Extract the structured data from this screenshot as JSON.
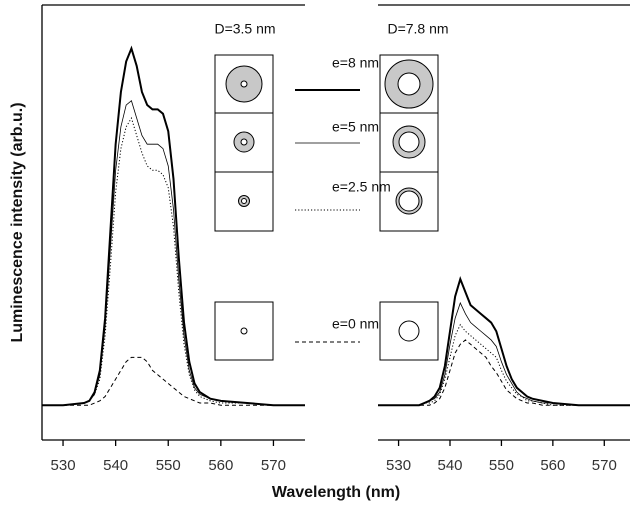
{
  "chart_data": [
    {
      "type": "line",
      "title": "D=3.5 nm",
      "ylabel": "Luminescence intensity (arb.u.)",
      "xlabel": "Wavelength (nm)",
      "x": [
        526,
        530,
        534,
        535,
        536,
        537,
        538,
        539,
        540,
        541,
        542,
        543,
        544,
        545,
        546,
        547,
        548,
        549,
        550,
        551,
        552,
        553,
        554,
        555,
        556,
        558,
        560,
        565,
        570,
        576
      ],
      "xlim": [
        526,
        576
      ],
      "xticks": [
        530,
        540,
        550,
        560,
        570
      ],
      "ylim": [
        0,
        100
      ],
      "series": [
        {
          "name": "e=8 nm",
          "color": "#000000",
          "line_style": "solid",
          "line_width": 2,
          "values": [
            8,
            8,
            8.5,
            9,
            11,
            16,
            28,
            48,
            68,
            80,
            87,
            90,
            86,
            80,
            77,
            76,
            76,
            75,
            71,
            60,
            42,
            27,
            18,
            13,
            11,
            9.5,
            9,
            8.5,
            8,
            8
          ]
        },
        {
          "name": "e=5 nm",
          "color": "#000000",
          "line_style": "solid",
          "line_width": 0.8,
          "values": [
            8,
            8,
            8.5,
            9,
            10.5,
            15,
            26,
            44,
            62,
            72,
            77,
            78,
            74,
            70,
            68,
            68,
            68,
            67,
            63,
            53,
            37,
            24,
            16,
            12,
            10.5,
            9.5,
            9,
            8.5,
            8,
            8
          ]
        },
        {
          "name": "e=2.5 nm",
          "color": "#000000",
          "line_style": "dotted",
          "line_width": 1,
          "values": [
            8,
            8,
            8.5,
            9,
            10.5,
            14,
            24,
            40,
            57,
            67,
            72,
            74,
            70,
            66,
            63,
            62,
            62,
            61,
            58,
            49,
            34,
            22,
            15,
            11.5,
            10,
            9,
            8.5,
            8.5,
            8,
            8
          ]
        },
        {
          "name": "e=0 nm",
          "color": "#000000",
          "line_style": "dashed",
          "line_width": 1,
          "values": [
            8,
            8,
            8,
            8,
            8.5,
            9,
            10,
            12,
            14,
            16,
            18,
            19,
            19,
            19,
            18,
            16,
            15,
            14,
            13,
            12,
            11,
            10,
            9.5,
            9,
            8.5,
            8.5,
            8,
            8,
            8,
            8
          ]
        }
      ]
    },
    {
      "type": "line",
      "title": "D=7.8 nm",
      "x": [
        526,
        530,
        534,
        535,
        536,
        537,
        538,
        539,
        540,
        541,
        542,
        543,
        544,
        545,
        546,
        547,
        548,
        549,
        550,
        551,
        552,
        553,
        554,
        555,
        556,
        558,
        560,
        565,
        570,
        575
      ],
      "xlim": [
        526,
        575
      ],
      "xticks": [
        530,
        540,
        550,
        560,
        570
      ],
      "ylim": [
        0,
        100
      ],
      "series": [
        {
          "color": "#000000",
          "line_style": "solid",
          "line_width": 2,
          "values": [
            8,
            8,
            8,
            8.5,
            9,
            10,
            12,
            17,
            25,
            33,
            37,
            34,
            31,
            30,
            29,
            28,
            27,
            25,
            21,
            17,
            14,
            12,
            11,
            10,
            9.5,
            9,
            8.5,
            8,
            8,
            8
          ]
        },
        {
          "color": "#000000",
          "line_style": "solid",
          "line_width": 0.8,
          "values": [
            8,
            8,
            8,
            8.5,
            9,
            9.5,
            11,
            15,
            22,
            28,
            31.5,
            29,
            27,
            26,
            25,
            24,
            23,
            21.5,
            18,
            15,
            13,
            11,
            10,
            9.5,
            9,
            8.5,
            8.5,
            8,
            8,
            8
          ]
        },
        {
          "color": "#000000",
          "line_style": "dotted",
          "line_width": 1,
          "values": [
            8,
            8,
            8,
            8.5,
            8.5,
            9,
            10.5,
            14,
            19,
            24,
            26.5,
            25,
            24,
            23,
            22,
            21,
            20,
            19,
            16,
            13.5,
            12,
            10.5,
            10,
            9,
            9,
            8.5,
            8,
            8,
            8,
            8
          ]
        },
        {
          "color": "#000000",
          "line_style": "dashed",
          "line_width": 1,
          "values": [
            8,
            8,
            8,
            8,
            8,
            8.5,
            9.5,
            12,
            16,
            20,
            22,
            23,
            22,
            21,
            20,
            19,
            17,
            15.5,
            13.5,
            11.5,
            10.5,
            9.5,
            9,
            8.5,
            8.5,
            8,
            8,
            8,
            8,
            8
          ]
        }
      ]
    }
  ]
}
